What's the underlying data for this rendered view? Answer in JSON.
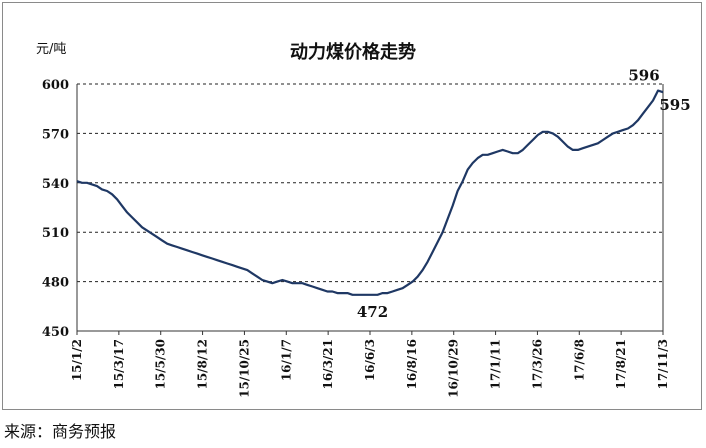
{
  "chart_data": {
    "type": "line",
    "title": "动力煤价格走势",
    "ylabel": "元/吨",
    "xlabel": "",
    "ylim": [
      450,
      600
    ],
    "yticks": [
      450,
      480,
      510,
      540,
      570,
      600
    ],
    "xtick_labels": [
      "15/1/2",
      "15/3/17",
      "15/5/30",
      "15/8/12",
      "15/10/25",
      "16/1/7",
      "16/3/21",
      "16/6/3",
      "16/8/16",
      "16/10/29",
      "17/1/11",
      "17/3/26",
      "17/6/8",
      "17/8/21",
      "17/11/3"
    ],
    "grid": "horizontal-dashed",
    "series": [
      {
        "values": [
          541,
          540,
          540,
          539,
          538,
          536,
          535,
          533,
          530,
          526,
          522,
          519,
          516,
          513,
          511,
          509,
          507,
          505,
          503,
          502,
          501,
          500,
          499,
          498,
          497,
          496,
          495,
          494,
          493,
          492,
          491,
          490,
          489,
          488,
          487,
          485,
          483,
          481,
          480,
          479,
          480,
          481,
          480,
          479,
          479,
          479,
          478,
          477,
          476,
          475,
          474,
          474,
          473,
          473,
          473,
          472,
          472,
          472,
          472,
          472,
          472,
          473,
          473,
          474,
          475,
          476,
          478,
          480,
          483,
          487,
          492,
          498,
          504,
          510,
          518,
          526,
          535,
          541,
          548,
          552,
          555,
          557,
          557,
          558,
          559,
          560,
          559,
          558,
          558,
          560,
          563,
          566,
          569,
          571,
          571,
          570,
          568,
          565,
          562,
          560,
          560,
          561,
          562,
          563,
          564,
          566,
          568,
          570,
          571,
          572,
          573,
          575,
          578,
          582,
          586,
          590,
          596,
          595
        ],
        "point_count": 118
      }
    ],
    "annotations": [
      {
        "text": "596",
        "value": 596
      },
      {
        "text": "595",
        "value": 595
      },
      {
        "text": "472",
        "value": 472
      }
    ],
    "source": "来源：商务预报"
  }
}
